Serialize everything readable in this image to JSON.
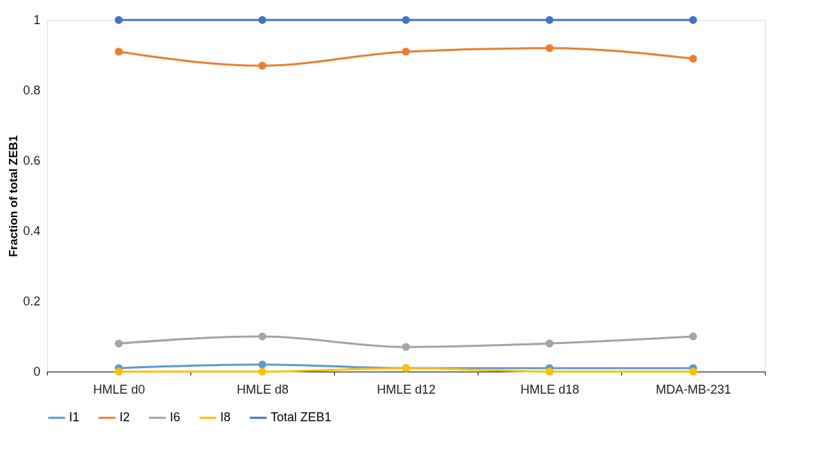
{
  "chart_data": {
    "type": "line",
    "ylabel": "Fraction of total ZEB1",
    "categories": [
      "HMLE d0",
      "HMLE d8",
      "HMLE d12",
      "HMLE d18",
      "MDA-MB-231"
    ],
    "series": [
      {
        "name": "I1",
        "color": "#5b9bd5",
        "values": [
          0.01,
          0.02,
          0.01,
          0.01,
          0.01
        ]
      },
      {
        "name": "I2",
        "color": "#ed7d31",
        "values": [
          0.91,
          0.87,
          0.91,
          0.92,
          0.89
        ]
      },
      {
        "name": "I6",
        "color": "#a5a5a5",
        "values": [
          0.08,
          0.1,
          0.07,
          0.08,
          0.1
        ]
      },
      {
        "name": "I8",
        "color": "#ffc000",
        "values": [
          0.0,
          0.0,
          0.01,
          0.0,
          0.0
        ]
      },
      {
        "name": "Total ZEB1",
        "color": "#4472c4",
        "values": [
          1,
          1,
          1,
          1,
          1
        ]
      }
    ],
    "ylim": [
      0,
      1
    ],
    "yticks": [
      0,
      0.2,
      0.4,
      0.6,
      0.8,
      1
    ],
    "grid": false,
    "legend": "bottom",
    "marker": "circle",
    "line_style": "solid"
  }
}
